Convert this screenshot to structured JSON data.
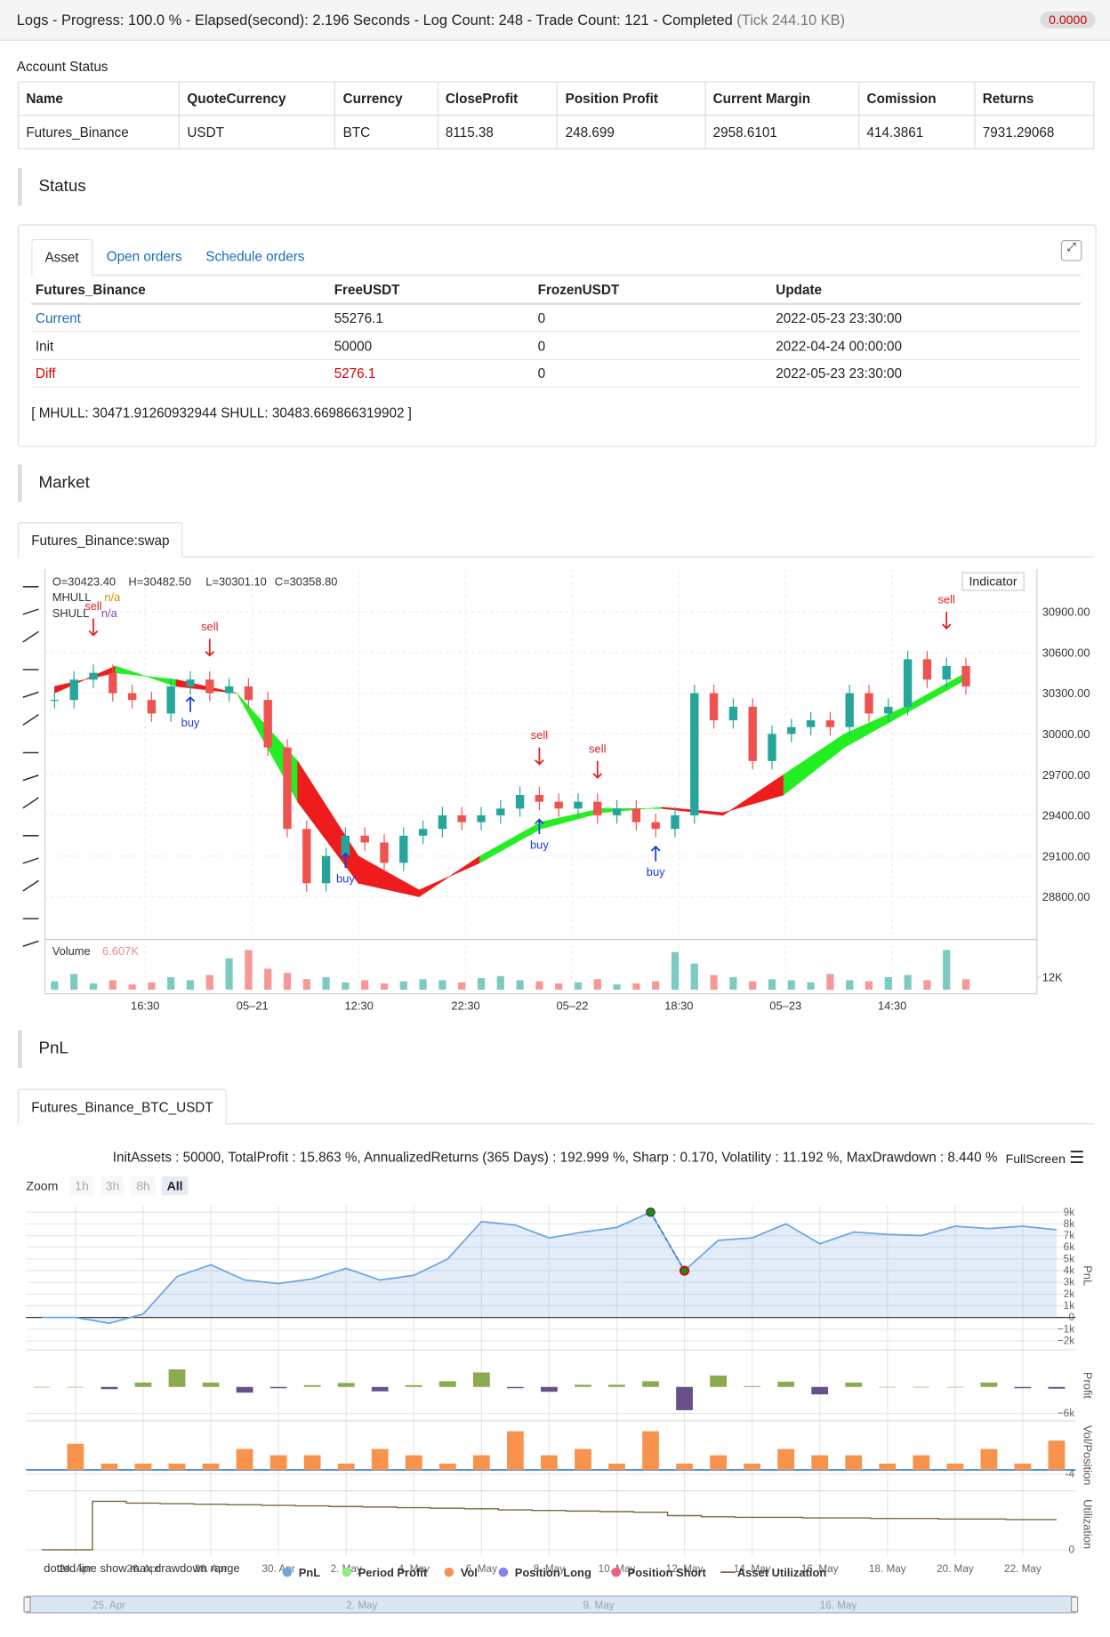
{
  "header": {
    "title": "Logs - Progress: 100.0 % - Elapsed(second): 2.196 Seconds - Log Count: 248 - Trade Count: 121 - Completed",
    "tick": "(Tick 244.10 KB)",
    "badge": "0.0000"
  },
  "account": {
    "label": "Account Status",
    "columns": [
      "Name",
      "QuoteCurrency",
      "Currency",
      "CloseProfit",
      "Position Profit",
      "Current Margin",
      "Comission",
      "Returns"
    ],
    "row": [
      "Futures_Binance",
      "USDT",
      "BTC",
      "8115.38",
      "248.699",
      "2958.6101",
      "414.3861",
      "7931.29068"
    ]
  },
  "status": {
    "heading": "Status",
    "tabs": [
      "Asset",
      "Open orders",
      "Schedule orders"
    ],
    "columns": [
      "Futures_Binance",
      "FreeUSDT",
      "FrozenUSDT",
      "Update"
    ],
    "rows": [
      [
        "Current",
        "55276.1",
        "0",
        "2022-05-23 23:30:00"
      ],
      [
        "Init",
        "50000",
        "0",
        "2022-04-24 00:00:00"
      ],
      [
        "Diff",
        "5276.1",
        "0",
        "2022-05-23 23:30:00"
      ]
    ],
    "note": "[ MHULL: 30471.91260932944 SHULL: 30483.669866319902 ]"
  },
  "market": {
    "heading": "Market",
    "tab": "Futures_Binance:swap",
    "ohlc": [
      "O=30423.40",
      "H=30482.50",
      "L=30301.10",
      "C=30358.80"
    ],
    "legend": [
      {
        "name": "MHULL",
        "value": "n/a",
        "color": "#e08a00"
      },
      {
        "name": "SHULL",
        "value": "n/a",
        "color": "#8e44ad"
      }
    ],
    "indicator": "Indicator",
    "chart": {
      "type": "candlestick",
      "up_color": "#26a69a",
      "down_color": "#ef5350",
      "band_up_color": "#22ee22",
      "band_down_color": "#ee1c1c",
      "closes": [
        30250,
        30400,
        30450,
        30300,
        30250,
        30150,
        30350,
        30400,
        30300,
        30350,
        30250,
        29900,
        29300,
        28900,
        29100,
        29250,
        29200,
        29050,
        29250,
        29300,
        29400,
        29350,
        29400,
        29450,
        29550,
        29500,
        29450,
        29500,
        29400,
        29450,
        29350,
        29300,
        29400,
        30300,
        30100,
        30200,
        29800,
        30000,
        30050,
        30100,
        30050,
        30300,
        30150,
        30200,
        30550,
        30400,
        30500,
        30350
      ],
      "mhull": [
        30300,
        30500,
        30350,
        30300,
        29500,
        28900,
        28800,
        29100,
        29350,
        29450,
        29450,
        29400,
        29700,
        30000,
        30200,
        30450
      ],
      "shull": [
        30350,
        30450,
        30400,
        30300,
        29800,
        29100,
        28850,
        29050,
        29300,
        29420,
        29460,
        29420,
        29550,
        29900,
        30150,
        30400
      ],
      "ylim": [
        28485,
        31215
      ],
      "xlim": [
        -0.5,
        50.5
      ],
      "yticks": [
        {
          "value": 28800,
          "label": "28800.00"
        },
        {
          "value": 29100,
          "label": "29100.00"
        },
        {
          "value": 29400,
          "label": "29400.00"
        },
        {
          "value": 29700,
          "label": "29700.00"
        },
        {
          "value": 30000,
          "label": "30000.00"
        },
        {
          "value": 30300,
          "label": "30300.00"
        },
        {
          "value": 30600,
          "label": "30600.00"
        },
        {
          "value": 30900,
          "label": "30900.00"
        }
      ],
      "xticks": [
        {
          "value": 4.67,
          "label": "16:30"
        },
        {
          "value": 10.2,
          "label": "05–21"
        },
        {
          "value": 15.7,
          "label": "12:30"
        },
        {
          "value": 21.2,
          "label": "22:30"
        },
        {
          "value": 26.7,
          "label": "05–22"
        },
        {
          "value": 32.2,
          "label": "18:30"
        },
        {
          "value": 37.7,
          "label": "05–23"
        },
        {
          "value": 43.2,
          "label": "14:30"
        }
      ],
      "signals": [
        {
          "label": "sell",
          "index": 2
        },
        {
          "label": "sell",
          "index": 8
        },
        {
          "label": "buy",
          "index": 7
        },
        {
          "label": "buy",
          "index": 15
        },
        {
          "label": "sell",
          "index": 25
        },
        {
          "label": "buy",
          "index": 25
        },
        {
          "label": "sell",
          "index": 28
        },
        {
          "label": "buy",
          "index": 31
        },
        {
          "label": "sell",
          "index": 46
        }
      ],
      "volume_label": "Volume",
      "volume_value": "6.607K",
      "volumes": [
        8000,
        15000,
        6000,
        9000,
        5000,
        7000,
        12000,
        9000,
        14000,
        30000,
        38000,
        20000,
        16000,
        10000,
        12000,
        7000,
        9000,
        6000,
        8000,
        10000,
        9000,
        7000,
        11000,
        13000,
        9000,
        8000,
        6000,
        7000,
        10000,
        5000,
        6000,
        8000,
        36000,
        25000,
        14000,
        12000,
        8000,
        10000,
        9000,
        7000,
        15000,
        9000,
        8000,
        12000,
        14000,
        9000,
        38000,
        10000
      ],
      "vlim": [
        0,
        45000
      ],
      "vticks": [
        {
          "value": 12000,
          "label": "12K"
        }
      ]
    }
  },
  "pnl": {
    "heading": "PnL",
    "tab": "Futures_Binance_BTC_USDT",
    "summary": "InitAssets : 50000, TotalProfit : 15.863 %, AnnualizedReturns (365 Days) : 192.999 %, Sharp : 0.170, Volatility : 11.192 %, MaxDrawdown : 8.440 %",
    "fullscreen": "FullScreen",
    "zoom": [
      "Zoom",
      "1h",
      "3h",
      "8h",
      "All"
    ],
    "chart": {
      "type": "line",
      "color": "#6ca6e0",
      "xlim": [
        -0.46,
        30.56
      ],
      "ylim": [
        -2500,
        9550
      ],
      "values": [
        0,
        0,
        -500,
        300,
        3500,
        4500,
        3200,
        2900,
        3300,
        4200,
        3200,
        3600,
        5000,
        8200,
        7900,
        6800,
        7300,
        7700,
        9000,
        4000,
        6600,
        6800,
        8000,
        6300,
        7300,
        7100,
        7000,
        7800,
        7600,
        7800,
        7500
      ],
      "yticks": [
        {
          "value": -2000,
          "label": "−2k"
        },
        {
          "value": -1000,
          "label": "−1k"
        },
        0,
        {
          "value": 1000,
          "label": "1k"
        },
        {
          "value": 2000,
          "label": "2k"
        },
        {
          "value": 3000,
          "label": "3k"
        },
        {
          "value": 4000,
          "label": "4k"
        },
        {
          "value": 5000,
          "label": "5k"
        },
        {
          "value": 6000,
          "label": "6k"
        },
        {
          "value": 7000,
          "label": "7k"
        },
        {
          "value": 8000,
          "label": "8k"
        },
        {
          "value": 9000,
          "label": "9k"
        }
      ],
      "xticks": [
        {
          "value": 1,
          "label": "24. Apr"
        },
        {
          "value": 3,
          "label": "26. Apr"
        },
        {
          "value": 5,
          "label": "28. Apr"
        },
        {
          "value": 7,
          "label": "30. Apr"
        },
        {
          "value": 9,
          "label": "2. May"
        },
        {
          "value": 11,
          "label": "4. May"
        },
        {
          "value": 13,
          "label": "6. May"
        },
        {
          "value": 15,
          "label": "8. May"
        },
        {
          "value": 17,
          "label": "10. May"
        },
        {
          "value": 19,
          "label": "12. May"
        },
        {
          "value": 21,
          "label": "14. May"
        },
        {
          "value": 23,
          "label": "16. May"
        },
        {
          "value": 25,
          "label": "18. May"
        },
        {
          "value": 27,
          "label": "20. May"
        },
        {
          "value": 29,
          "label": "22. May"
        }
      ],
      "profit": [
        0,
        0,
        -500,
        1000,
        4000,
        1000,
        -1300,
        -300,
        400,
        900,
        -1000,
        400,
        1300,
        3300,
        -300,
        -1100,
        500,
        500,
        1300,
        -5300,
        2600,
        200,
        1200,
        -1700,
        1000,
        0,
        0,
        0,
        1000,
        -300,
        -400
      ],
      "profit_ylim": [
        -7000,
        7500
      ],
      "profit_yticks": [
        {
          "value": -6000,
          "label": "−6k"
        }
      ],
      "profit_up_color": "#8bab50",
      "profit_down_color": "#6b4f8a",
      "vol": [
        0,
        25,
        6,
        6,
        6,
        6,
        20,
        14,
        14,
        6,
        20,
        14,
        6,
        14,
        37,
        14,
        20,
        6,
        37,
        6,
        14,
        6,
        20,
        14,
        14,
        6,
        14,
        6,
        20,
        6,
        28
      ],
      "vol_ylim": [
        -17,
        44
      ],
      "vol_yticks": [
        -4
      ],
      "vol_color": "#f7934c",
      "utilization": [
        0,
        0,
        0.85,
        0.82,
        0.81,
        0.8,
        0.79,
        0.78,
        0.77,
        0.76,
        0.75,
        0.74,
        0.73,
        0.72,
        0.7,
        0.69,
        0.68,
        0.67,
        0.66,
        0.6,
        0.58,
        0.57,
        0.57,
        0.56,
        0.56,
        0.55,
        0.55,
        0.54,
        0.54,
        0.53,
        0.53
      ],
      "util_ylim": [
        -0.1,
        1.0
      ],
      "util_yticks": [
        0
      ],
      "util_color": "#7a6a3a",
      "panel_labels": [
        "PnL",
        "Profit",
        "Vol/Position",
        "Utilization"
      ],
      "legend": [
        {
          "name": "PnL",
          "color": "#6ca6e0"
        },
        {
          "name": "Period Profit",
          "color": "#90ed7d"
        },
        {
          "name": "Vol",
          "color": "#f7934c"
        },
        {
          "name": "Position Long",
          "color": "#8085e9"
        },
        {
          "name": "Position Short",
          "color": "#f15c80"
        },
        {
          "name": "Asset Utilization",
          "color": "#7a6a3a"
        }
      ],
      "footnote": "dotted line show max drawdown range",
      "navigator": [
        {
          "value": 1.5,
          "label": "25. Apr"
        },
        {
          "value": 9,
          "label": "2. May"
        },
        {
          "value": 16,
          "label": "9. May"
        },
        {
          "value": 23,
          "label": "16. May"
        }
      ]
    }
  }
}
